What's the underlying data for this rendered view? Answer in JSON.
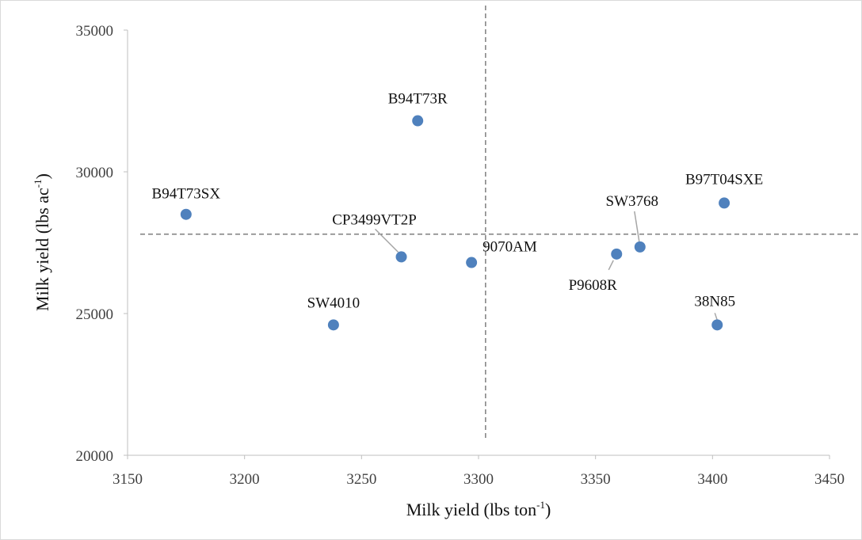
{
  "chart_data": {
    "type": "scatter",
    "title": "",
    "xlabel": "Milk yield (lbs ton",
    "xlabel_sup": "-1",
    "xlabel_suffix": ")",
    "ylabel": "Milk yield (lbs ac",
    "ylabel_sup": "-1",
    "ylabel_suffix": ")",
    "xlim": [
      3150,
      3450
    ],
    "ylim": [
      20000,
      35000
    ],
    "xticks": [
      3150,
      3200,
      3250,
      3300,
      3350,
      3400,
      3450
    ],
    "yticks": [
      20000,
      25000,
      30000,
      35000
    ],
    "xtick_labels": [
      "3150",
      "3200",
      "3250",
      "3300",
      "3350",
      "3400",
      "3450"
    ],
    "ytick_labels": [
      "20000",
      "25000",
      "30000",
      "35000"
    ],
    "grid": false,
    "point_color": "#4f81bd",
    "reference_lines": {
      "x": 3303,
      "y": 27800
    },
    "points": [
      {
        "label": "B94T73SX",
        "x": 3175,
        "y": 28500
      },
      {
        "label": "B94T73R",
        "x": 3274,
        "y": 31800
      },
      {
        "label": "CP3499VT2P",
        "x": 3267,
        "y": 27000
      },
      {
        "label": "9070AM",
        "x": 3297,
        "y": 26800
      },
      {
        "label": "SW4010",
        "x": 3238,
        "y": 24600
      },
      {
        "label": "B97T04SXE",
        "x": 3405,
        "y": 28900
      },
      {
        "label": "SW3768",
        "x": 3369,
        "y": 27350
      },
      {
        "label": "P9608R",
        "x": 3359,
        "y": 27100
      },
      {
        "label": "38N85",
        "x": 3402,
        "y": 24600
      }
    ]
  }
}
